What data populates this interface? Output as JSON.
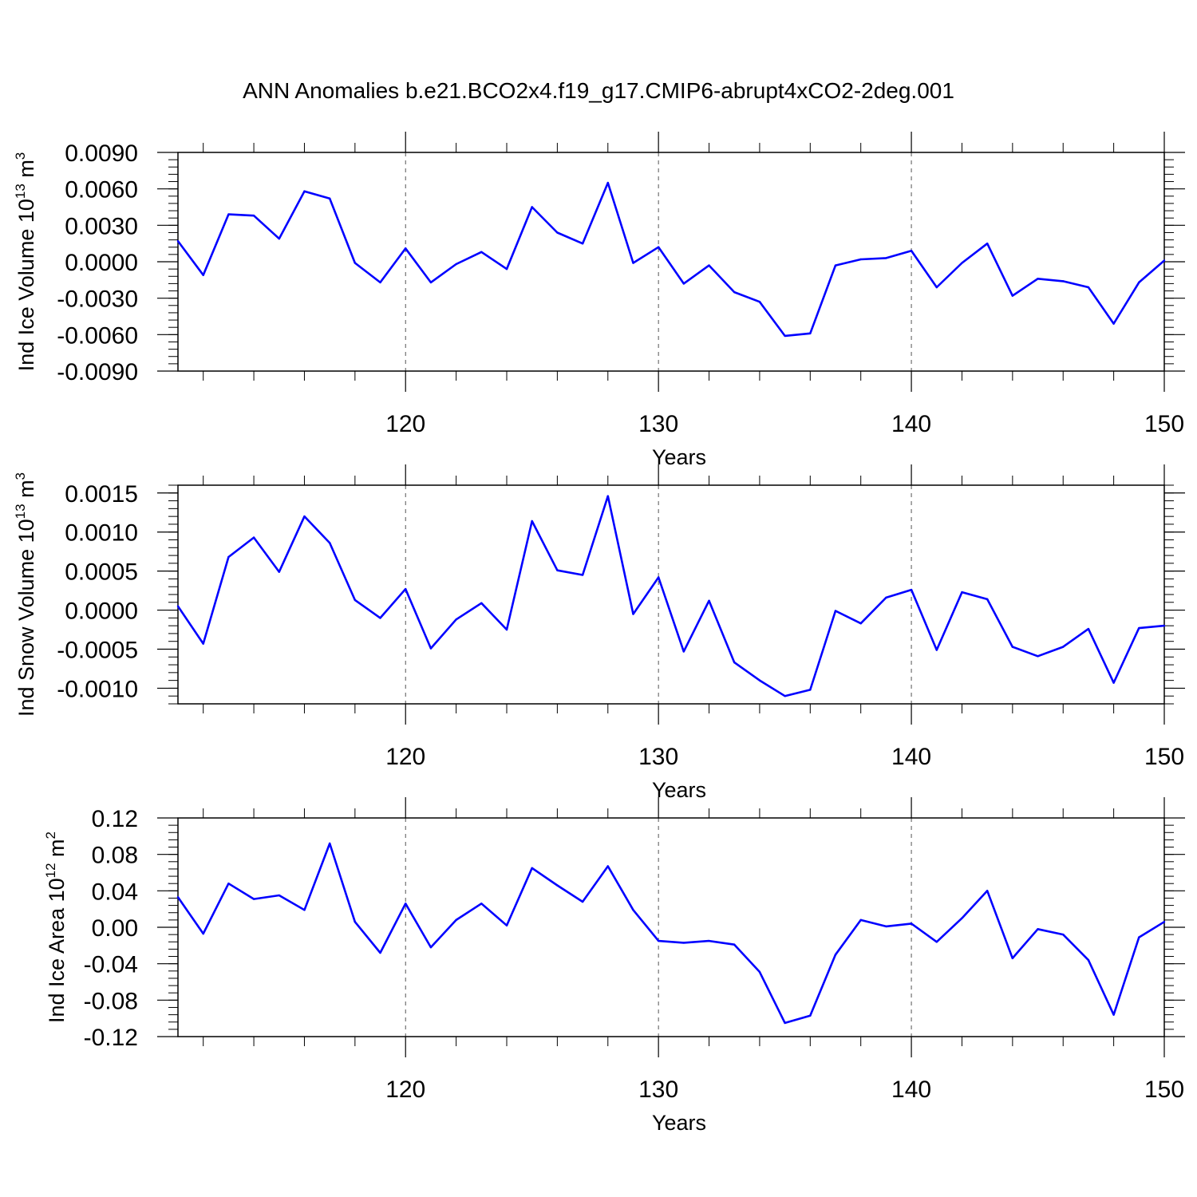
{
  "title": "ANN Anomalies b.e21.BCO2x4.f19_g17.CMIP6-abrupt4xCO2-2deg.001",
  "colors": {
    "series": "#0000ff",
    "axis": "#000000",
    "grid": "#555555"
  },
  "chart_data": [
    {
      "type": "line",
      "ylabel": "Ind Ice Volume",
      "yunit_base": "10",
      "yunit_exp": "13",
      "yunit_sym": " m",
      "yunit_sym_exp": "3",
      "xlabel": "Years",
      "xlim": [
        111,
        150
      ],
      "ylim": [
        -0.009,
        0.009
      ],
      "xticks": [
        120,
        130,
        140,
        150
      ],
      "xtick_labels": [
        "120",
        "130",
        "140",
        "150"
      ],
      "yticks": [
        0.009,
        0.006,
        0.003,
        0.0,
        -0.003,
        -0.006,
        -0.009
      ],
      "ytick_labels": [
        "0.0090",
        "0.0060",
        "0.0030",
        "0.0000",
        "-0.0030",
        "-0.0060",
        "-0.0090"
      ],
      "grid_x": true,
      "x": [
        111,
        112,
        113,
        114,
        115,
        116,
        117,
        118,
        119,
        120,
        121,
        122,
        123,
        124,
        125,
        126,
        127,
        128,
        129,
        130,
        131,
        132,
        133,
        134,
        135,
        136,
        137,
        138,
        139,
        140,
        141,
        142,
        143,
        144,
        145,
        146,
        147,
        148,
        149,
        150
      ],
      "values": [
        0.0017,
        -0.0011,
        0.0039,
        0.0038,
        0.0019,
        0.0058,
        0.0052,
        -0.0001,
        -0.0017,
        0.0011,
        -0.0017,
        -0.0002,
        0.0008,
        -0.0006,
        0.0045,
        0.0024,
        0.0015,
        0.0065,
        -0.0001,
        0.0012,
        -0.0018,
        -0.0003,
        -0.0025,
        -0.0033,
        -0.0061,
        -0.0059,
        -0.0003,
        0.0002,
        0.0003,
        0.0009,
        -0.0021,
        -0.0001,
        0.0015,
        -0.0028,
        -0.0014,
        -0.0016,
        -0.0021,
        -0.0051,
        -0.0017,
        0.0001
      ]
    },
    {
      "type": "line",
      "ylabel": "Ind Snow Volume",
      "yunit_base": "10",
      "yunit_exp": "13",
      "yunit_sym": " m",
      "yunit_sym_exp": "3",
      "xlabel": "Years",
      "xlim": [
        111,
        150
      ],
      "ylim": [
        -0.0012,
        0.0016
      ],
      "xticks": [
        120,
        130,
        140,
        150
      ],
      "xtick_labels": [
        "120",
        "130",
        "140",
        "150"
      ],
      "yticks": [
        0.0015,
        0.001,
        0.0005,
        0.0,
        -0.0005,
        -0.001
      ],
      "ytick_labels": [
        "0.0015",
        "0.0010",
        "0.0005",
        "0.0000",
        "-0.0005",
        "-0.0010"
      ],
      "grid_x": true,
      "x": [
        111,
        112,
        113,
        114,
        115,
        116,
        117,
        118,
        119,
        120,
        121,
        122,
        123,
        124,
        125,
        126,
        127,
        128,
        129,
        130,
        131,
        132,
        133,
        134,
        135,
        136,
        137,
        138,
        139,
        140,
        141,
        142,
        143,
        144,
        145,
        146,
        147,
        148,
        149,
        150
      ],
      "values": [
        5e-05,
        -0.00043,
        0.00068,
        0.00093,
        0.00049,
        0.0012,
        0.00086,
        0.00013,
        -0.0001,
        0.00027,
        -0.00049,
        -0.00012,
        9e-05,
        -0.00025,
        0.00114,
        0.00051,
        0.00045,
        0.00146,
        -5e-05,
        0.00042,
        -0.00053,
        0.00012,
        -0.00067,
        -0.0009,
        -0.0011,
        -0.00102,
        -1e-05,
        -0.00017,
        0.00016,
        0.00026,
        -0.00051,
        0.00023,
        0.00014,
        -0.00047,
        -0.00059,
        -0.00047,
        -0.00024,
        -0.00093,
        -0.00023,
        -0.0002
      ]
    },
    {
      "type": "line",
      "ylabel": "Ind Ice Area",
      "yunit_base": "10",
      "yunit_exp": "12",
      "yunit_sym": " m",
      "yunit_sym_exp": "2",
      "xlabel": "Years",
      "xlim": [
        111,
        150
      ],
      "ylim": [
        -0.12,
        0.12
      ],
      "xticks": [
        120,
        130,
        140,
        150
      ],
      "xtick_labels": [
        "120",
        "130",
        "140",
        "150"
      ],
      "yticks": [
        0.12,
        0.08,
        0.04,
        0.0,
        -0.04,
        -0.08,
        -0.12
      ],
      "ytick_labels": [
        "0.12",
        "0.08",
        "0.04",
        "0.00",
        "-0.04",
        "-0.08",
        "-0.12"
      ],
      "grid_x": true,
      "x": [
        111,
        112,
        113,
        114,
        115,
        116,
        117,
        118,
        119,
        120,
        121,
        122,
        123,
        124,
        125,
        126,
        127,
        128,
        129,
        130,
        131,
        132,
        133,
        134,
        135,
        136,
        137,
        138,
        139,
        140,
        141,
        142,
        143,
        144,
        145,
        146,
        147,
        148,
        149,
        150
      ],
      "values": [
        0.033,
        -0.007,
        0.048,
        0.031,
        0.035,
        0.019,
        0.092,
        0.006,
        -0.028,
        0.026,
        -0.022,
        0.008,
        0.026,
        0.002,
        0.065,
        0.046,
        0.028,
        0.067,
        0.019,
        -0.015,
        -0.017,
        -0.015,
        -0.019,
        -0.049,
        -0.105,
        -0.097,
        -0.03,
        0.008,
        0.001,
        0.004,
        -0.016,
        0.01,
        0.04,
        -0.034,
        -0.002,
        -0.008,
        -0.036,
        -0.096,
        -0.011,
        0.006
      ]
    }
  ]
}
